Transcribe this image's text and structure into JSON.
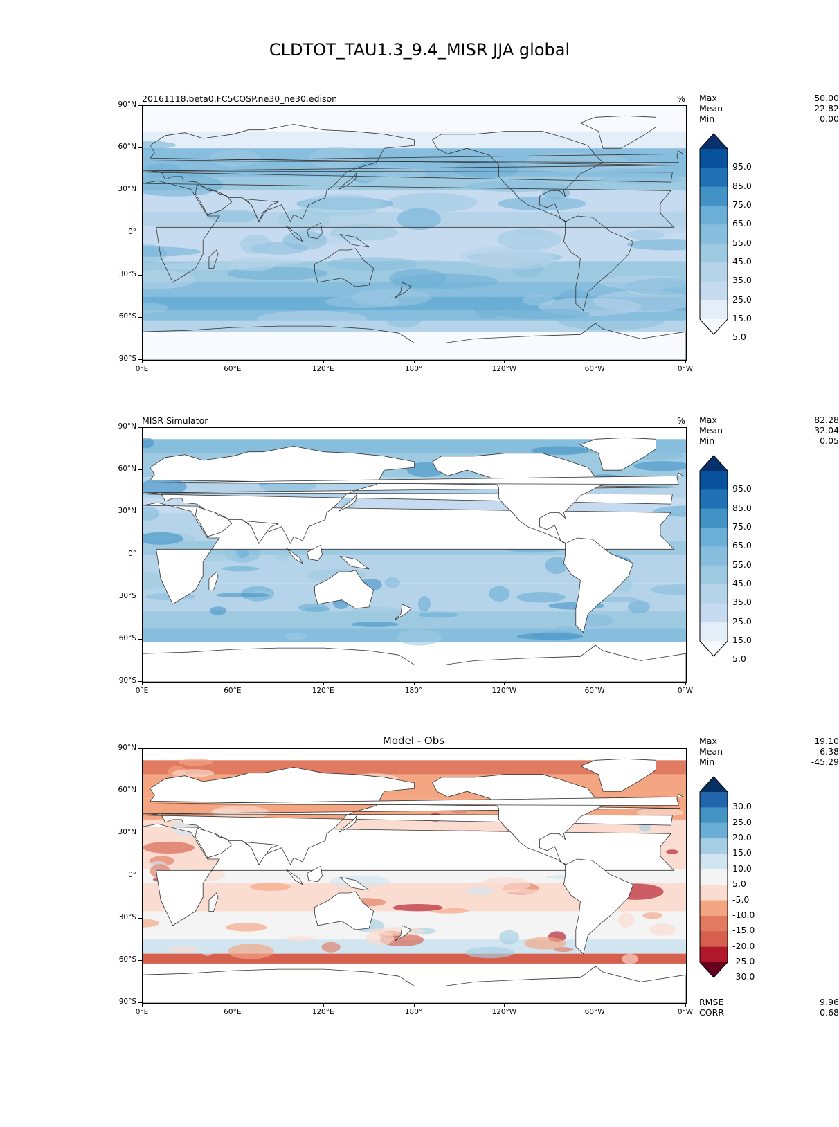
{
  "figure_title": "CLDTOT_TAU1.3_9.4_MISR JJA global",
  "axes": {
    "lat_ticks": [
      "90°N",
      "60°N",
      "30°N",
      "0°",
      "30°S",
      "60°S",
      "90°S"
    ],
    "lon_ticks": [
      "0°E",
      "60°E",
      "120°E",
      "180°",
      "120°W",
      "60°W",
      "0°W"
    ]
  },
  "panels": [
    {
      "id": "model",
      "title_left": "20161118.beta0.FC5COSP.ne30_ne30.edison",
      "title_center": "",
      "units": "%",
      "stats": [
        {
          "label": "Max",
          "value": "50.00"
        },
        {
          "label": "Mean",
          "value": "22.82"
        },
        {
          "label": "Min",
          "value": "0.00"
        }
      ],
      "colorbar": {
        "labels": [
          "95.0",
          "85.0",
          "75.0",
          "65.0",
          "55.0",
          "45.0",
          "35.0",
          "25.0",
          "15.0",
          "5.0"
        ],
        "colors": [
          "#08306b",
          "#08519c",
          "#2171b5",
          "#4292c6",
          "#6baed6",
          "#87bddd",
          "#9ecae1",
          "#b6d4e9",
          "#c6dbef",
          "#e4eef8",
          "#f7fbff"
        ]
      },
      "extra_stats": []
    },
    {
      "id": "obs",
      "title_left": "MISR Simulator",
      "title_center": "",
      "units": "%",
      "stats": [
        {
          "label": "Max",
          "value": "82.28"
        },
        {
          "label": "Mean",
          "value": "32.04"
        },
        {
          "label": "Min",
          "value": "0.05"
        }
      ],
      "colorbar": {
        "labels": [
          "95.0",
          "85.0",
          "75.0",
          "65.0",
          "55.0",
          "45.0",
          "35.0",
          "25.0",
          "15.0",
          "5.0"
        ],
        "colors": [
          "#08306b",
          "#08519c",
          "#2171b5",
          "#4292c6",
          "#6baed6",
          "#87bddd",
          "#9ecae1",
          "#b6d4e9",
          "#c6dbef",
          "#e4eef8",
          "#f7fbff"
        ]
      },
      "extra_stats": []
    },
    {
      "id": "diff",
      "title_left": "",
      "title_center": "Model - Obs",
      "units": "",
      "stats": [
        {
          "label": "Max",
          "value": "19.10"
        },
        {
          "label": "Mean",
          "value": "-6.38"
        },
        {
          "label": "Min",
          "value": "-45.29"
        }
      ],
      "colorbar": {
        "labels": [
          "30.0",
          "25.0",
          "20.0",
          "15.0",
          "10.0",
          "5.0",
          "-5.0",
          "-10.0",
          "-15.0",
          "-20.0",
          "-25.0",
          "-30.0"
        ],
        "colors": [
          "#053061",
          "#2166ac",
          "#4393c3",
          "#6aaed6",
          "#a6cfe4",
          "#d1e5f0",
          "#f4f4f4",
          "#fbdcd0",
          "#f4a582",
          "#e07b62",
          "#d6604d",
          "#b2182b",
          "#67001f"
        ]
      },
      "extra_stats": [
        {
          "label": "RMSE",
          "value": "9.96"
        },
        {
          "label": "CORR",
          "value": "0.68"
        }
      ]
    }
  ]
}
